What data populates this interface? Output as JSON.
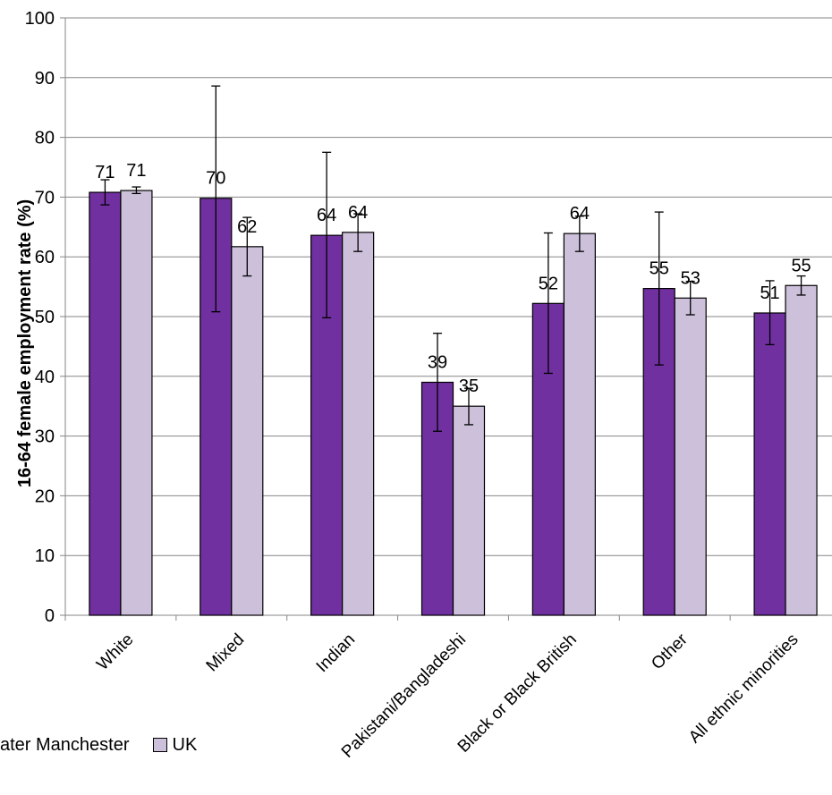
{
  "chart_data": {
    "type": "bar",
    "ylabel": "16-64 female employment rate (%)",
    "xlabel": "",
    "ylim": [
      0,
      100
    ],
    "yticks": [
      0,
      10,
      20,
      30,
      40,
      50,
      60,
      70,
      80,
      90,
      100
    ],
    "grid": true,
    "categories": [
      "White",
      "Mixed",
      "Indian",
      "Pakistani/Bangladeshi",
      "Black or Black British",
      "Other",
      "All ethnic minorities"
    ],
    "series": [
      {
        "name": "Greater Manchester",
        "legend_text": "ater Manchester",
        "color": "#7030A0",
        "values": [
          70.8,
          69.8,
          63.6,
          39.0,
          52.2,
          54.7,
          50.6
        ],
        "labels": [
          "71",
          "70",
          "64",
          "39",
          "52",
          "55",
          "51"
        ],
        "err_low": [
          68.7,
          50.8,
          49.8,
          30.8,
          40.5,
          41.9,
          45.3
        ],
        "err_high": [
          72.9,
          88.6,
          77.5,
          47.2,
          64.0,
          67.5,
          56.0
        ]
      },
      {
        "name": "UK",
        "legend_text": "UK",
        "color": "#CCC0DA",
        "values": [
          71.1,
          61.7,
          64.1,
          35.0,
          63.9,
          53.1,
          55.2
        ],
        "labels": [
          "71",
          "62",
          "64",
          "35",
          "64",
          "53",
          "55"
        ],
        "err_low": [
          70.6,
          56.8,
          60.9,
          31.9,
          60.9,
          50.3,
          53.6
        ],
        "err_high": [
          71.7,
          66.6,
          67.2,
          38.0,
          66.8,
          55.9,
          56.8
        ]
      }
    ],
    "legend_position": "bottom-left"
  }
}
